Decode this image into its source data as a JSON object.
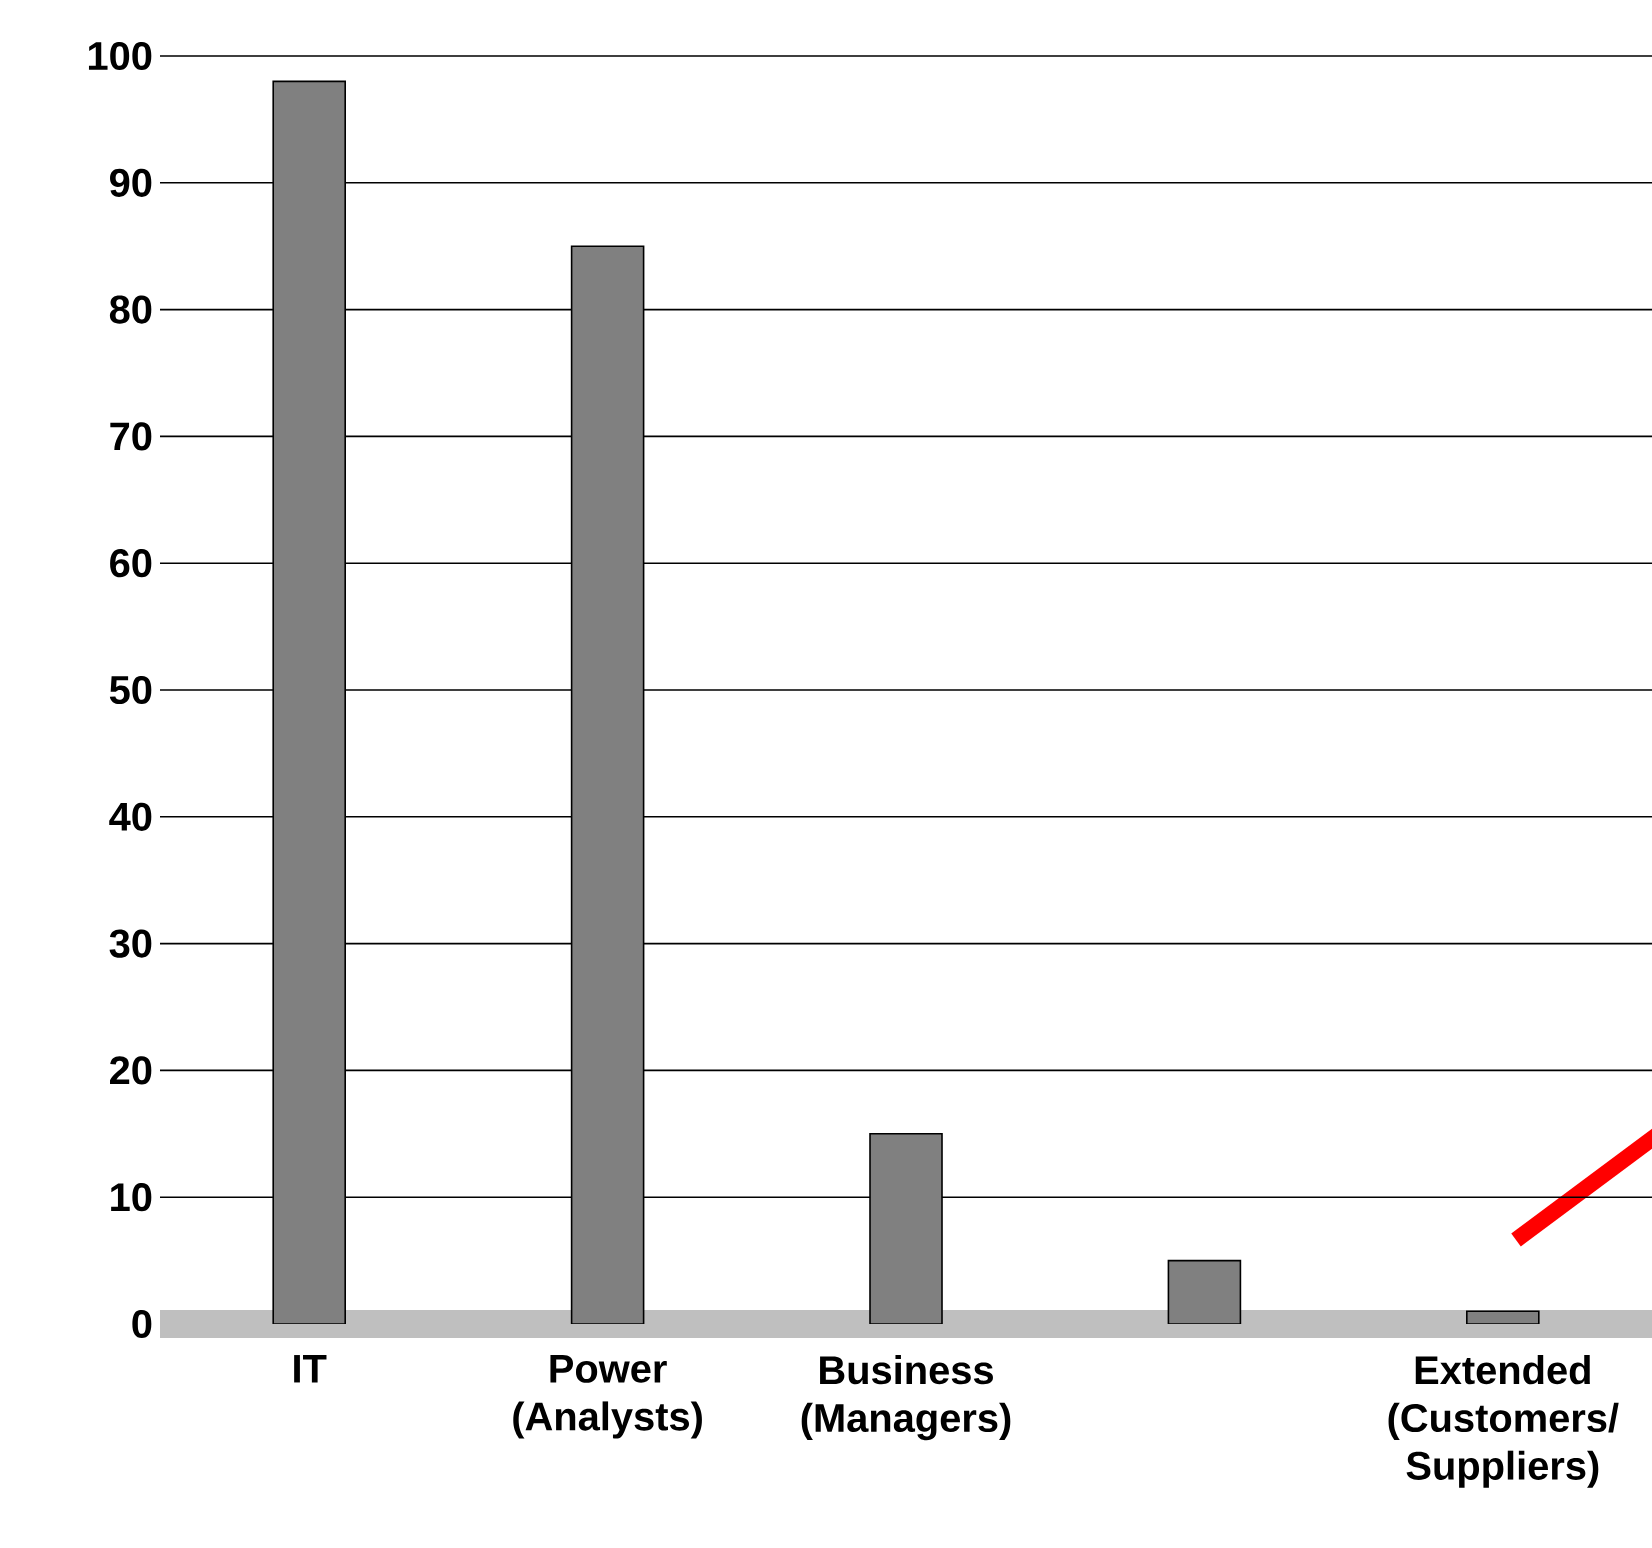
{
  "chart_data": {
    "type": "bar",
    "categories": [
      "IT",
      "Power (Analysts)",
      "Business (Managers)",
      null,
      "Extended (Customers/ Suppliers)"
    ],
    "values": [
      98,
      85,
      15,
      5,
      1
    ],
    "color": "#808080",
    "ylim": [
      0,
      100
    ],
    "yticks": [
      0,
      10,
      20,
      30,
      40,
      50,
      60,
      70,
      80,
      90,
      100
    ],
    "grid": "y"
  }
}
